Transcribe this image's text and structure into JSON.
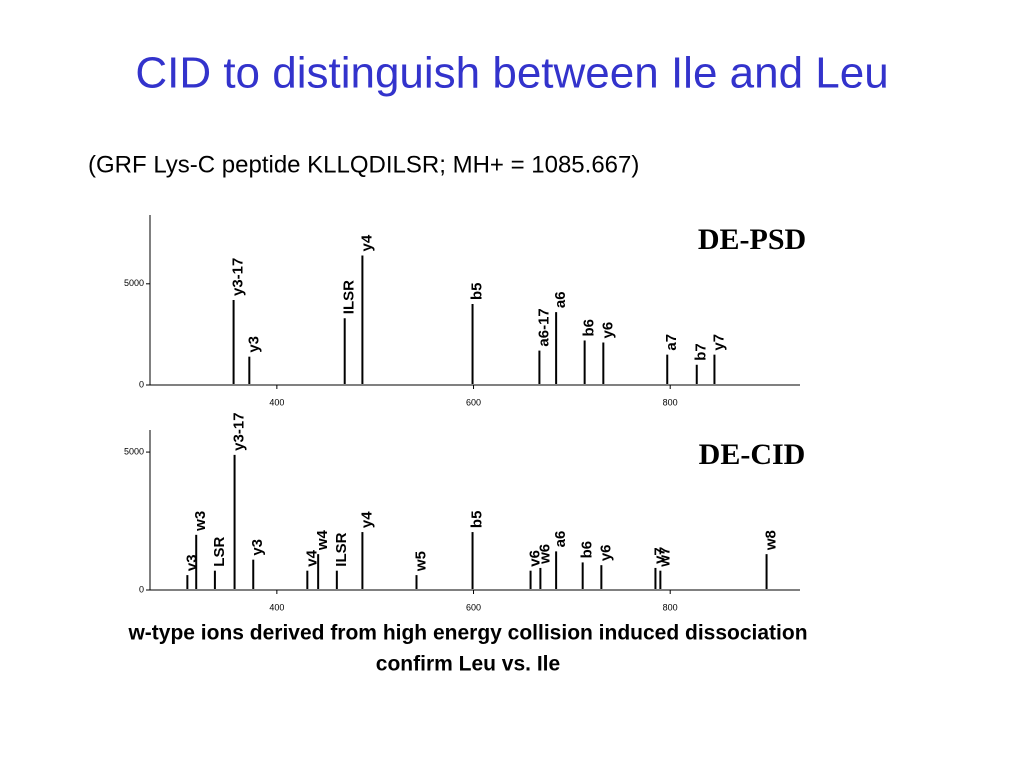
{
  "title": "CID to distinguish between Ile and Leu",
  "subtitle": "(GRF Lys-C peptide KLLQDILSR;  MH+ = 1085.667)",
  "caption": [
    "w-type ions derived from high energy collision induced dissociation",
    "confirm Leu vs. Ile"
  ],
  "chart_data": [
    {
      "type": "stem",
      "title": "DE-PSD",
      "x": [
        356,
        372,
        469,
        487,
        599,
        667,
        684,
        713,
        732,
        797,
        827,
        845
      ],
      "values": [
        4200,
        1400,
        3300,
        6400,
        4000,
        1700,
        3600,
        2200,
        2100,
        1500,
        1000,
        1500
      ],
      "annotations": [
        "y3-17",
        "y3",
        "ILSR",
        "y4",
        "b5",
        "a6-17",
        "a6",
        "b6",
        "y6",
        "a7",
        "b7",
        "y7"
      ],
      "color": "#000000",
      "xlim": [
        271,
        932
      ],
      "ylim": [
        0,
        8400
      ],
      "xticks": [
        400,
        600,
        800
      ],
      "yticks": [
        0,
        5000
      ]
    },
    {
      "type": "stem",
      "title": "DE-CID",
      "x": [
        309,
        318,
        337,
        357,
        376,
        431,
        442,
        461,
        487,
        542,
        599,
        658,
        668,
        684,
        711,
        730,
        785,
        790,
        898
      ],
      "values": [
        540,
        2000,
        700,
        4900,
        1100,
        700,
        1300,
        700,
        2100,
        540,
        2100,
        700,
        800,
        1400,
        1000,
        900,
        800,
        700,
        1300
      ],
      "annotations": [
        "v3",
        "w3",
        "LSR",
        "y3-17",
        "y3",
        "v4",
        "w4",
        "ILSR",
        "y4",
        "w5",
        "b5",
        "v6",
        "w6",
        "a6",
        "b6",
        "y6",
        "v7",
        "w7",
        "w8"
      ],
      "color": "#000000",
      "xlim": [
        271,
        932
      ],
      "ylim": [
        0,
        5800
      ],
      "xticks": [
        400,
        600,
        800
      ],
      "yticks": [
        0,
        5000
      ]
    }
  ]
}
